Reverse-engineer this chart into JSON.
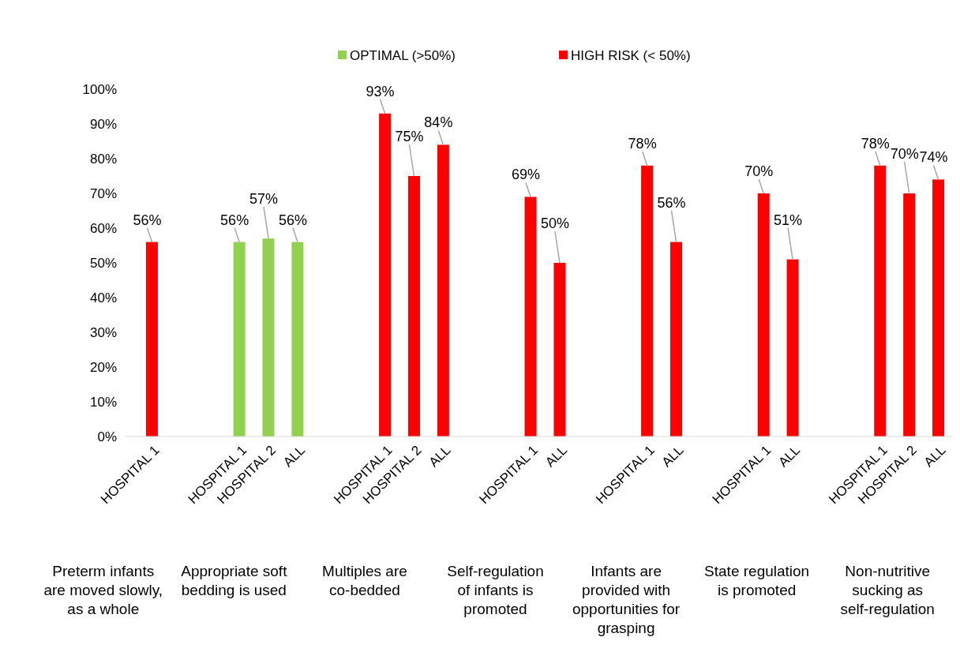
{
  "chart_data": {
    "type": "bar",
    "categories": [
      "HOSPITAL 1",
      null,
      null,
      "HOSPITAL 1",
      "HOSPITAL 2",
      "ALL",
      null,
      null,
      "HOSPITAL 1",
      "HOSPITAL 2",
      "ALL",
      null,
      null,
      "HOSPITAL 1",
      "ALL",
      null,
      null,
      "HOSPITAL 1",
      "ALL",
      null,
      null,
      "HOSPITAL 1",
      "ALL",
      null,
      null,
      "HOSPITAL 1",
      "HOSPITAL 2",
      "ALL"
    ],
    "series": [
      {
        "name": "OPTIMAL (>50%)",
        "color": "#92d050",
        "values": [
          null,
          null,
          null,
          56,
          57,
          56,
          null,
          null,
          null,
          null,
          null,
          null,
          null,
          null,
          null,
          null,
          null,
          null,
          null,
          null,
          null,
          null,
          null,
          null,
          null,
          null,
          null,
          null
        ],
        "value_labels": [
          null,
          null,
          null,
          "56%",
          "57%",
          "56%",
          null,
          null,
          null,
          null,
          null,
          null,
          null,
          null,
          null,
          null,
          null,
          null,
          null,
          null,
          null,
          null,
          null,
          null,
          null,
          null,
          null,
          null
        ]
      },
      {
        "name": "HIGH RISK (< 50%)",
        "color": "#ff0000",
        "values": [
          56,
          null,
          null,
          null,
          null,
          null,
          null,
          null,
          93,
          75,
          84,
          null,
          null,
          69,
          50,
          null,
          null,
          78,
          56,
          null,
          null,
          70,
          51,
          null,
          null,
          78,
          70,
          74
        ],
        "value_labels": [
          "56%",
          null,
          null,
          null,
          null,
          null,
          null,
          null,
          "93%",
          "75%",
          "84%",
          null,
          null,
          "69%",
          "50%",
          null,
          null,
          "78%",
          "56%",
          null,
          null,
          "70%",
          "51%",
          null,
          null,
          "78%",
          "70%",
          "74%"
        ]
      }
    ],
    "ylim": [
      0,
      100
    ],
    "yticks": [
      {
        "value": 0,
        "label": "0%"
      },
      {
        "value": 10,
        "label": "10%"
      },
      {
        "value": 20,
        "label": "20%"
      },
      {
        "value": 30,
        "label": "30%"
      },
      {
        "value": 40,
        "label": "40%"
      },
      {
        "value": 50,
        "label": "50%"
      },
      {
        "value": 60,
        "label": "60%"
      },
      {
        "value": 70,
        "label": "70%"
      },
      {
        "value": 80,
        "label": "80%"
      },
      {
        "value": 90,
        "label": "90%"
      },
      {
        "value": 100,
        "label": "100%"
      }
    ],
    "grid": false,
    "legend": "top",
    "annotations": [
      "Preterm infants are moved slowly, as a whole",
      "Appropriate soft bedding is used",
      "Multiples are co-bedded",
      "Self-regulation of infants is promoted",
      "Infants are provided with opportunities for grasping",
      "State regulation is promoted",
      "Non-nutritive sucking as self-regulation"
    ]
  }
}
